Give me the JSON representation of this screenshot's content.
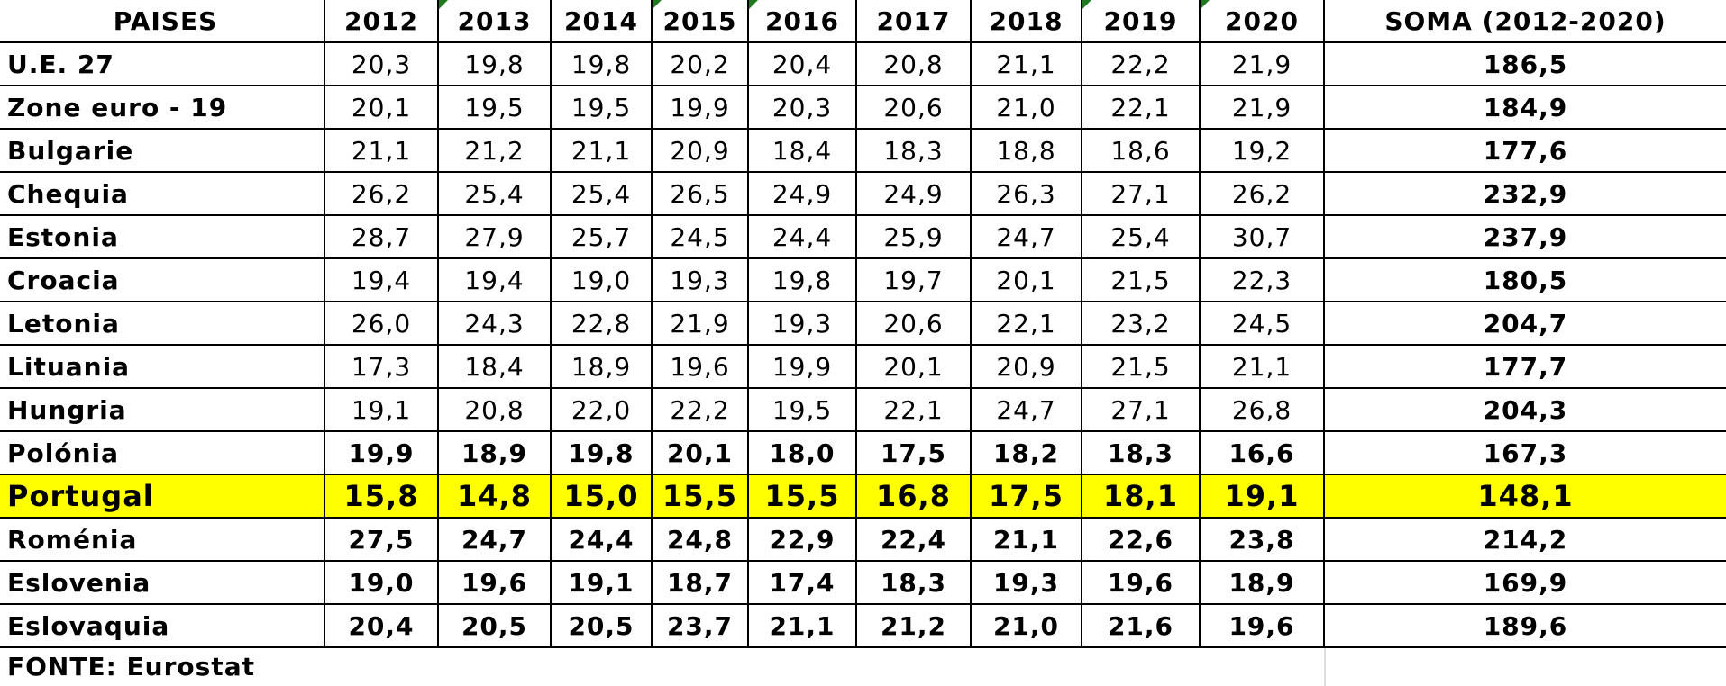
{
  "table": {
    "header": [
      "PAISES",
      "2012",
      "2013",
      "2014",
      "2015",
      "2016",
      "2017",
      "2018",
      "2019",
      "2020",
      "SOMA (2012-2020)"
    ],
    "rows": [
      [
        "U.E. 27",
        "20,3",
        "19,8",
        "19,8",
        "20,2",
        "20,4",
        "20,8",
        "21,1",
        "22,2",
        "21,9",
        "186,5"
      ],
      [
        "Zone euro - 19",
        "20,1",
        "19,5",
        "19,5",
        "19,9",
        "20,3",
        "20,6",
        "21,0",
        "22,1",
        "21,9",
        "184,9"
      ],
      [
        "Bulgarie",
        "21,1",
        "21,2",
        "21,1",
        "20,9",
        "18,4",
        "18,3",
        "18,8",
        "18,6",
        "19,2",
        "177,6"
      ],
      [
        "Chequia",
        "26,2",
        "25,4",
        "25,4",
        "26,5",
        "24,9",
        "24,9",
        "26,3",
        "27,1",
        "26,2",
        "232,9"
      ],
      [
        "Estonia",
        "28,7",
        "27,9",
        "25,7",
        "24,5",
        "24,4",
        "25,9",
        "24,7",
        "25,4",
        "30,7",
        "237,9"
      ],
      [
        "Croacia",
        "19,4",
        "19,4",
        "19,0",
        "19,3",
        "19,8",
        "19,7",
        "20,1",
        "21,5",
        "22,3",
        "180,5"
      ],
      [
        "Letonia",
        "26,0",
        "24,3",
        "22,8",
        "21,9",
        "19,3",
        "20,6",
        "22,1",
        "23,2",
        "24,5",
        "204,7"
      ],
      [
        "Lituania",
        "17,3",
        "18,4",
        "18,9",
        "19,6",
        "19,9",
        "20,1",
        "20,9",
        "21,5",
        "21,1",
        "177,7"
      ],
      [
        "Hungria",
        "19,1",
        "20,8",
        "22,0",
        "22,2",
        "19,5",
        "22,1",
        "24,7",
        "27,1",
        "26,8",
        "204,3"
      ],
      [
        "Polónia",
        "19,9",
        "18,9",
        "19,8",
        "20,1",
        "18,0",
        "17,5",
        "18,2",
        "18,3",
        "16,6",
        "167,3"
      ],
      [
        "Portugal",
        "15,8",
        "14,8",
        "15,0",
        "15,5",
        "15,5",
        "16,8",
        "17,5",
        "18,1",
        "19,1",
        "148,1"
      ],
      [
        "Roménia",
        "27,5",
        "24,7",
        "24,4",
        "24,8",
        "22,9",
        "22,4",
        "21,1",
        "22,6",
        "23,8",
        "214,2"
      ],
      [
        "Eslovenia",
        "19,0",
        "19,6",
        "19,1",
        "18,7",
        "17,4",
        "18,3",
        "19,3",
        "19,6",
        "18,9",
        "169,9"
      ],
      [
        "Eslovaquia",
        "20,4",
        "20,5",
        "20,5",
        "23,7",
        "21,1",
        "21,2",
        "21,0",
        "21,6",
        "19,6",
        "189,6"
      ]
    ],
    "footer": "FONTE: Eurostat"
  }
}
